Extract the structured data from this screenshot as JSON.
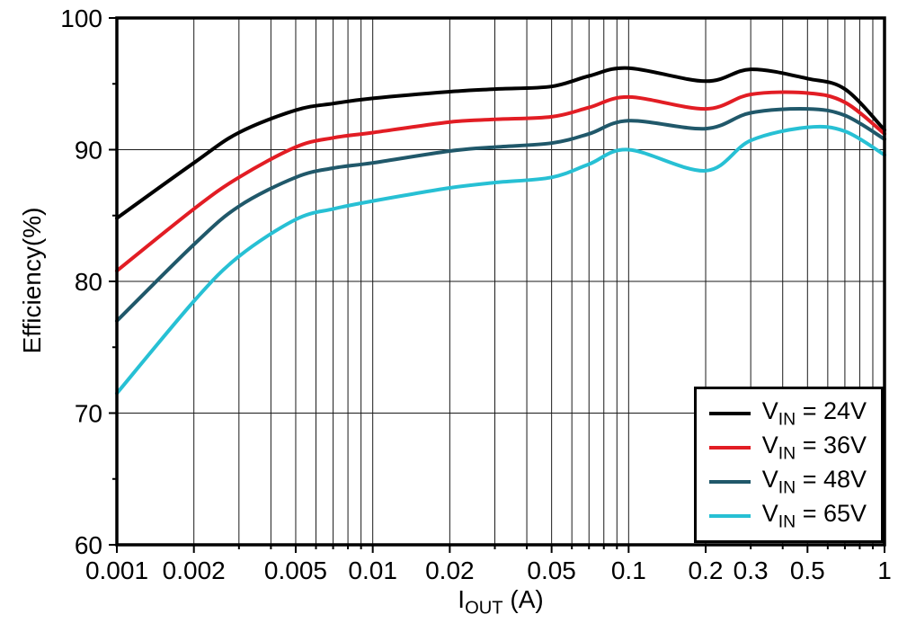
{
  "chart_data": {
    "type": "line",
    "title": "",
    "ylabel": "Efficiency(%)",
    "xlabel": "IOUT (A)",
    "xlabel_parts": {
      "pre": "I",
      "sub": "OUT",
      "post": " (A)"
    },
    "x_scale": "log",
    "xlim": [
      0.001,
      1
    ],
    "ylim": [
      60,
      100
    ],
    "grid": true,
    "grid_color": "#1a1a1a",
    "axis_color": "#000000",
    "legend_position": "bottom-right",
    "x": [
      0.001,
      0.002,
      0.003,
      0.005,
      0.007,
      0.01,
      0.02,
      0.03,
      0.05,
      0.07,
      0.1,
      0.2,
      0.3,
      0.5,
      0.7,
      1
    ],
    "x_tick_values": [
      0.001,
      0.002,
      0.005,
      0.01,
      0.02,
      0.05,
      0.1,
      0.2,
      0.3,
      0.5,
      1
    ],
    "x_tick_labels": [
      "0.001",
      "0.002",
      "0.005",
      "0.01",
      "0.02",
      "0.05",
      "0.1",
      "0.2",
      "0.3",
      "0.5",
      "1"
    ],
    "y_tick_values": [
      60,
      70,
      80,
      90,
      100
    ],
    "y_tick_labels": [
      "60",
      "70",
      "80",
      "90",
      "100"
    ],
    "y_gridline_values": [
      70,
      80,
      90
    ],
    "series": [
      {
        "name": "VIN = 24V",
        "label": {
          "pre": "V",
          "sub": "IN",
          "post": " = 24V"
        },
        "color": "#000000",
        "values": [
          84.8,
          89.0,
          91.3,
          93.0,
          93.5,
          93.9,
          94.4,
          94.6,
          94.8,
          95.6,
          96.2,
          95.2,
          96.1,
          95.4,
          94.6,
          91.5
        ]
      },
      {
        "name": "VIN = 36V",
        "label": {
          "pre": "V",
          "sub": "IN",
          "post": " = 36V"
        },
        "color": "#e21d24",
        "values": [
          80.8,
          85.5,
          87.9,
          90.2,
          90.9,
          91.3,
          92.1,
          92.3,
          92.5,
          93.2,
          94.0,
          93.1,
          94.2,
          94.3,
          93.6,
          91.2
        ]
      },
      {
        "name": "VIN = 48V",
        "label": {
          "pre": "V",
          "sub": "IN",
          "post": " = 48V"
        },
        "color": "#20586a",
        "values": [
          77.0,
          82.8,
          85.7,
          87.9,
          88.6,
          89.0,
          89.9,
          90.2,
          90.5,
          91.2,
          92.2,
          91.6,
          92.8,
          93.1,
          92.6,
          90.8
        ]
      },
      {
        "name": "VIN = 65V",
        "label": {
          "pre": "V",
          "sub": "IN",
          "post": " = 65V"
        },
        "color": "#27c0d4",
        "values": [
          71.5,
          78.5,
          81.9,
          84.7,
          85.5,
          86.1,
          87.1,
          87.5,
          87.9,
          88.9,
          90.0,
          88.4,
          90.7,
          91.7,
          91.4,
          89.6
        ]
      }
    ]
  }
}
